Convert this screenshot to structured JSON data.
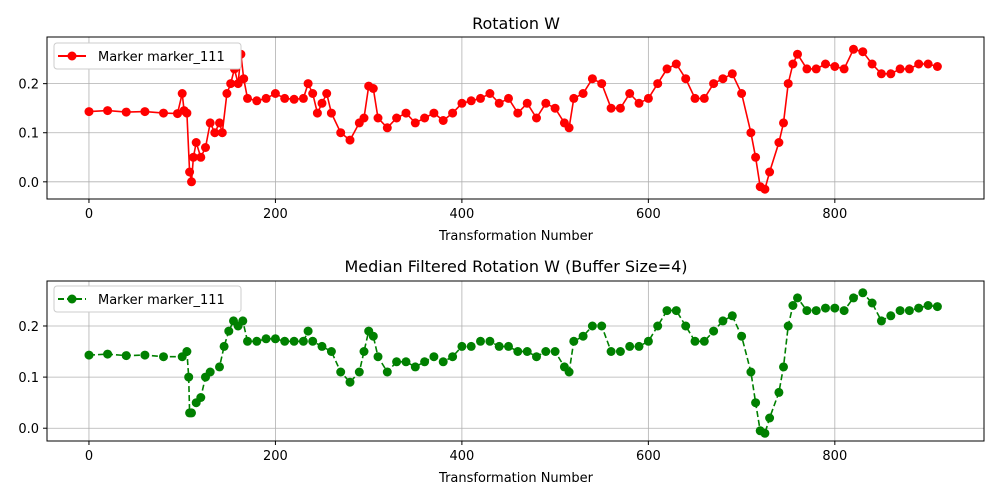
{
  "chart_data": [
    {
      "type": "line",
      "title": "Rotation W",
      "xlabel": "Transformation Number",
      "ylabel": "",
      "xlim": [
        -45,
        960
      ],
      "ylim": [
        -0.035,
        0.295
      ],
      "xticks": [
        0,
        200,
        400,
        600,
        800
      ],
      "yticks": [
        0.0,
        0.1,
        0.2
      ],
      "x_tick_labels": [
        "0",
        "200",
        "400",
        "600",
        "800"
      ],
      "y_tick_labels": [
        "0.0",
        "0.1",
        "0.2"
      ],
      "grid": true,
      "legend_position": "upper-left",
      "series": [
        {
          "name": "Marker marker_111",
          "color": "#ff0000",
          "line_style": "solid",
          "marker": "circle",
          "points": [
            [
              0,
              0.143
            ],
            [
              20,
              0.145
            ],
            [
              40,
              0.142
            ],
            [
              60,
              0.143
            ],
            [
              80,
              0.14
            ],
            [
              95,
              0.139
            ],
            [
              100,
              0.18
            ],
            [
              102,
              0.145
            ],
            [
              105,
              0.14
            ],
            [
              108,
              0.02
            ],
            [
              110,
              0.0
            ],
            [
              112,
              0.05
            ],
            [
              115,
              0.08
            ],
            [
              120,
              0.05
            ],
            [
              125,
              0.07
            ],
            [
              130,
              0.12
            ],
            [
              135,
              0.1
            ],
            [
              140,
              0.12
            ],
            [
              143,
              0.1
            ],
            [
              148,
              0.18
            ],
            [
              152,
              0.2
            ],
            [
              156,
              0.23
            ],
            [
              160,
              0.2
            ],
            [
              163,
              0.26
            ],
            [
              166,
              0.21
            ],
            [
              170,
              0.17
            ],
            [
              180,
              0.165
            ],
            [
              190,
              0.17
            ],
            [
              200,
              0.18
            ],
            [
              210,
              0.17
            ],
            [
              220,
              0.168
            ],
            [
              230,
              0.17
            ],
            [
              235,
              0.2
            ],
            [
              240,
              0.18
            ],
            [
              245,
              0.14
            ],
            [
              250,
              0.16
            ],
            [
              255,
              0.18
            ],
            [
              260,
              0.14
            ],
            [
              270,
              0.1
            ],
            [
              280,
              0.085
            ],
            [
              290,
              0.12
            ],
            [
              295,
              0.13
            ],
            [
              300,
              0.195
            ],
            [
              305,
              0.19
            ],
            [
              310,
              0.13
            ],
            [
              320,
              0.11
            ],
            [
              330,
              0.13
            ],
            [
              340,
              0.14
            ],
            [
              350,
              0.12
            ],
            [
              360,
              0.13
            ],
            [
              370,
              0.14
            ],
            [
              380,
              0.125
            ],
            [
              390,
              0.14
            ],
            [
              400,
              0.16
            ],
            [
              410,
              0.165
            ],
            [
              420,
              0.17
            ],
            [
              430,
              0.18
            ],
            [
              440,
              0.16
            ],
            [
              450,
              0.17
            ],
            [
              460,
              0.14
            ],
            [
              470,
              0.16
            ],
            [
              480,
              0.13
            ],
            [
              490,
              0.16
            ],
            [
              500,
              0.15
            ],
            [
              510,
              0.12
            ],
            [
              515,
              0.11
            ],
            [
              520,
              0.17
            ],
            [
              530,
              0.18
            ],
            [
              540,
              0.21
            ],
            [
              550,
              0.2
            ],
            [
              560,
              0.15
            ],
            [
              570,
              0.15
            ],
            [
              580,
              0.18
            ],
            [
              590,
              0.16
            ],
            [
              600,
              0.17
            ],
            [
              610,
              0.2
            ],
            [
              620,
              0.23
            ],
            [
              630,
              0.24
            ],
            [
              640,
              0.21
            ],
            [
              650,
              0.17
            ],
            [
              660,
              0.17
            ],
            [
              670,
              0.2
            ],
            [
              680,
              0.21
            ],
            [
              690,
              0.22
            ],
            [
              700,
              0.18
            ],
            [
              710,
              0.1
            ],
            [
              715,
              0.05
            ],
            [
              720,
              -0.01
            ],
            [
              725,
              -0.015
            ],
            [
              730,
              0.02
            ],
            [
              740,
              0.08
            ],
            [
              745,
              0.12
            ],
            [
              750,
              0.2
            ],
            [
              755,
              0.24
            ],
            [
              760,
              0.26
            ],
            [
              770,
              0.23
            ],
            [
              780,
              0.23
            ],
            [
              790,
              0.24
            ],
            [
              800,
              0.235
            ],
            [
              810,
              0.23
            ],
            [
              820,
              0.27
            ],
            [
              830,
              0.265
            ],
            [
              840,
              0.24
            ],
            [
              850,
              0.22
            ],
            [
              860,
              0.22
            ],
            [
              870,
              0.23
            ],
            [
              880,
              0.23
            ],
            [
              890,
              0.24
            ],
            [
              900,
              0.24
            ],
            [
              910,
              0.235
            ]
          ]
        }
      ]
    },
    {
      "type": "line",
      "title": "Median Filtered Rotation W (Buffer Size=4)",
      "xlabel": "Transformation Number",
      "ylabel": "",
      "xlim": [
        -45,
        960
      ],
      "ylim": [
        -0.025,
        0.288
      ],
      "xticks": [
        0,
        200,
        400,
        600,
        800
      ],
      "yticks": [
        0.0,
        0.1,
        0.2
      ],
      "x_tick_labels": [
        "0",
        "200",
        "400",
        "600",
        "800"
      ],
      "y_tick_labels": [
        "0.0",
        "0.1",
        "0.2"
      ],
      "grid": true,
      "legend_position": "upper-left",
      "series": [
        {
          "name": "Marker marker_111",
          "color": "#008000",
          "line_style": "dashed",
          "marker": "circle",
          "points": [
            [
              0,
              0.143
            ],
            [
              20,
              0.145
            ],
            [
              40,
              0.142
            ],
            [
              60,
              0.143
            ],
            [
              80,
              0.14
            ],
            [
              100,
              0.14
            ],
            [
              105,
              0.15
            ],
            [
              107,
              0.1
            ],
            [
              108,
              0.03
            ],
            [
              110,
              0.03
            ],
            [
              115,
              0.05
            ],
            [
              120,
              0.06
            ],
            [
              125,
              0.1
            ],
            [
              130,
              0.11
            ],
            [
              140,
              0.12
            ],
            [
              145,
              0.16
            ],
            [
              150,
              0.19
            ],
            [
              155,
              0.21
            ],
            [
              160,
              0.2
            ],
            [
              165,
              0.21
            ],
            [
              170,
              0.17
            ],
            [
              180,
              0.17
            ],
            [
              190,
              0.175
            ],
            [
              200,
              0.175
            ],
            [
              210,
              0.17
            ],
            [
              220,
              0.17
            ],
            [
              230,
              0.17
            ],
            [
              235,
              0.19
            ],
            [
              240,
              0.17
            ],
            [
              250,
              0.16
            ],
            [
              260,
              0.15
            ],
            [
              270,
              0.11
            ],
            [
              280,
              0.09
            ],
            [
              290,
              0.11
            ],
            [
              295,
              0.15
            ],
            [
              300,
              0.19
            ],
            [
              305,
              0.18
            ],
            [
              310,
              0.14
            ],
            [
              320,
              0.11
            ],
            [
              330,
              0.13
            ],
            [
              340,
              0.13
            ],
            [
              350,
              0.12
            ],
            [
              360,
              0.13
            ],
            [
              370,
              0.14
            ],
            [
              380,
              0.13
            ],
            [
              390,
              0.14
            ],
            [
              400,
              0.16
            ],
            [
              410,
              0.16
            ],
            [
              420,
              0.17
            ],
            [
              430,
              0.17
            ],
            [
              440,
              0.16
            ],
            [
              450,
              0.16
            ],
            [
              460,
              0.15
            ],
            [
              470,
              0.15
            ],
            [
              480,
              0.14
            ],
            [
              490,
              0.15
            ],
            [
              500,
              0.15
            ],
            [
              510,
              0.12
            ],
            [
              515,
              0.11
            ],
            [
              520,
              0.17
            ],
            [
              530,
              0.18
            ],
            [
              540,
              0.2
            ],
            [
              550,
              0.2
            ],
            [
              560,
              0.15
            ],
            [
              570,
              0.15
            ],
            [
              580,
              0.16
            ],
            [
              590,
              0.16
            ],
            [
              600,
              0.17
            ],
            [
              610,
              0.2
            ],
            [
              620,
              0.23
            ],
            [
              630,
              0.23
            ],
            [
              640,
              0.2
            ],
            [
              650,
              0.17
            ],
            [
              660,
              0.17
            ],
            [
              670,
              0.19
            ],
            [
              680,
              0.21
            ],
            [
              690,
              0.22
            ],
            [
              700,
              0.18
            ],
            [
              710,
              0.11
            ],
            [
              715,
              0.05
            ],
            [
              720,
              -0.005
            ],
            [
              725,
              -0.01
            ],
            [
              730,
              0.02
            ],
            [
              740,
              0.07
            ],
            [
              745,
              0.12
            ],
            [
              750,
              0.2
            ],
            [
              755,
              0.24
            ],
            [
              760,
              0.255
            ],
            [
              770,
              0.23
            ],
            [
              780,
              0.23
            ],
            [
              790,
              0.235
            ],
            [
              800,
              0.235
            ],
            [
              810,
              0.23
            ],
            [
              820,
              0.255
            ],
            [
              830,
              0.265
            ],
            [
              840,
              0.245
            ],
            [
              850,
              0.21
            ],
            [
              860,
              0.22
            ],
            [
              870,
              0.23
            ],
            [
              880,
              0.23
            ],
            [
              890,
              0.235
            ],
            [
              900,
              0.24
            ],
            [
              910,
              0.238
            ]
          ]
        }
      ]
    }
  ]
}
